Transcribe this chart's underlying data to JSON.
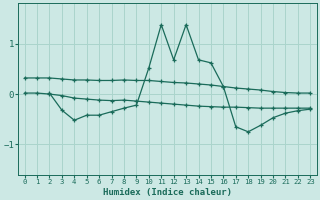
{
  "xlabel": "Humidex (Indice chaleur)",
  "ylabel": "",
  "bg_color": "#cce8e4",
  "grid_color": "#aad4cc",
  "line_color": "#1a6b5a",
  "xlim": [
    -0.5,
    23.5
  ],
  "ylim": [
    -1.6,
    1.8
  ],
  "yticks": [
    -1,
    0,
    1
  ],
  "xticks": [
    0,
    1,
    2,
    3,
    4,
    5,
    6,
    7,
    8,
    9,
    10,
    11,
    12,
    13,
    14,
    15,
    16,
    17,
    18,
    19,
    20,
    21,
    22,
    23
  ],
  "series": [
    {
      "x": [
        0,
        1,
        2,
        3,
        4,
        5,
        6,
        7,
        8,
        9,
        10,
        11,
        12,
        13,
        14,
        15,
        16,
        17,
        18,
        19,
        20,
        21,
        22,
        23
      ],
      "y": [
        0.32,
        0.32,
        0.32,
        0.3,
        0.28,
        0.28,
        0.27,
        0.27,
        0.28,
        0.27,
        0.27,
        0.25,
        0.23,
        0.22,
        0.2,
        0.18,
        0.15,
        0.12,
        0.1,
        0.08,
        0.05,
        0.03,
        0.02,
        0.02
      ]
    },
    {
      "x": [
        0,
        1,
        2,
        3,
        4,
        5,
        6,
        7,
        8,
        9,
        10,
        11,
        12,
        13,
        14,
        15,
        16,
        17,
        18,
        19,
        20,
        21,
        22,
        23
      ],
      "y": [
        0.02,
        0.02,
        0.0,
        -0.03,
        -0.08,
        -0.1,
        -0.12,
        -0.13,
        -0.12,
        -0.14,
        -0.16,
        -0.18,
        -0.2,
        -0.22,
        -0.24,
        -0.25,
        -0.26,
        -0.26,
        -0.27,
        -0.28,
        -0.28,
        -0.28,
        -0.28,
        -0.28
      ]
    },
    {
      "x": [
        2,
        3,
        4,
        5,
        6,
        7,
        8,
        9,
        10,
        11,
        12,
        13,
        14,
        15,
        16,
        17,
        18,
        19,
        20,
        21,
        22,
        23
      ],
      "y": [
        0.02,
        -0.32,
        -0.52,
        -0.42,
        -0.42,
        -0.35,
        -0.28,
        -0.22,
        0.52,
        1.38,
        0.68,
        1.38,
        0.68,
        0.62,
        0.15,
        -0.65,
        -0.75,
        -0.62,
        -0.47,
        -0.38,
        -0.33,
        -0.3
      ]
    }
  ]
}
